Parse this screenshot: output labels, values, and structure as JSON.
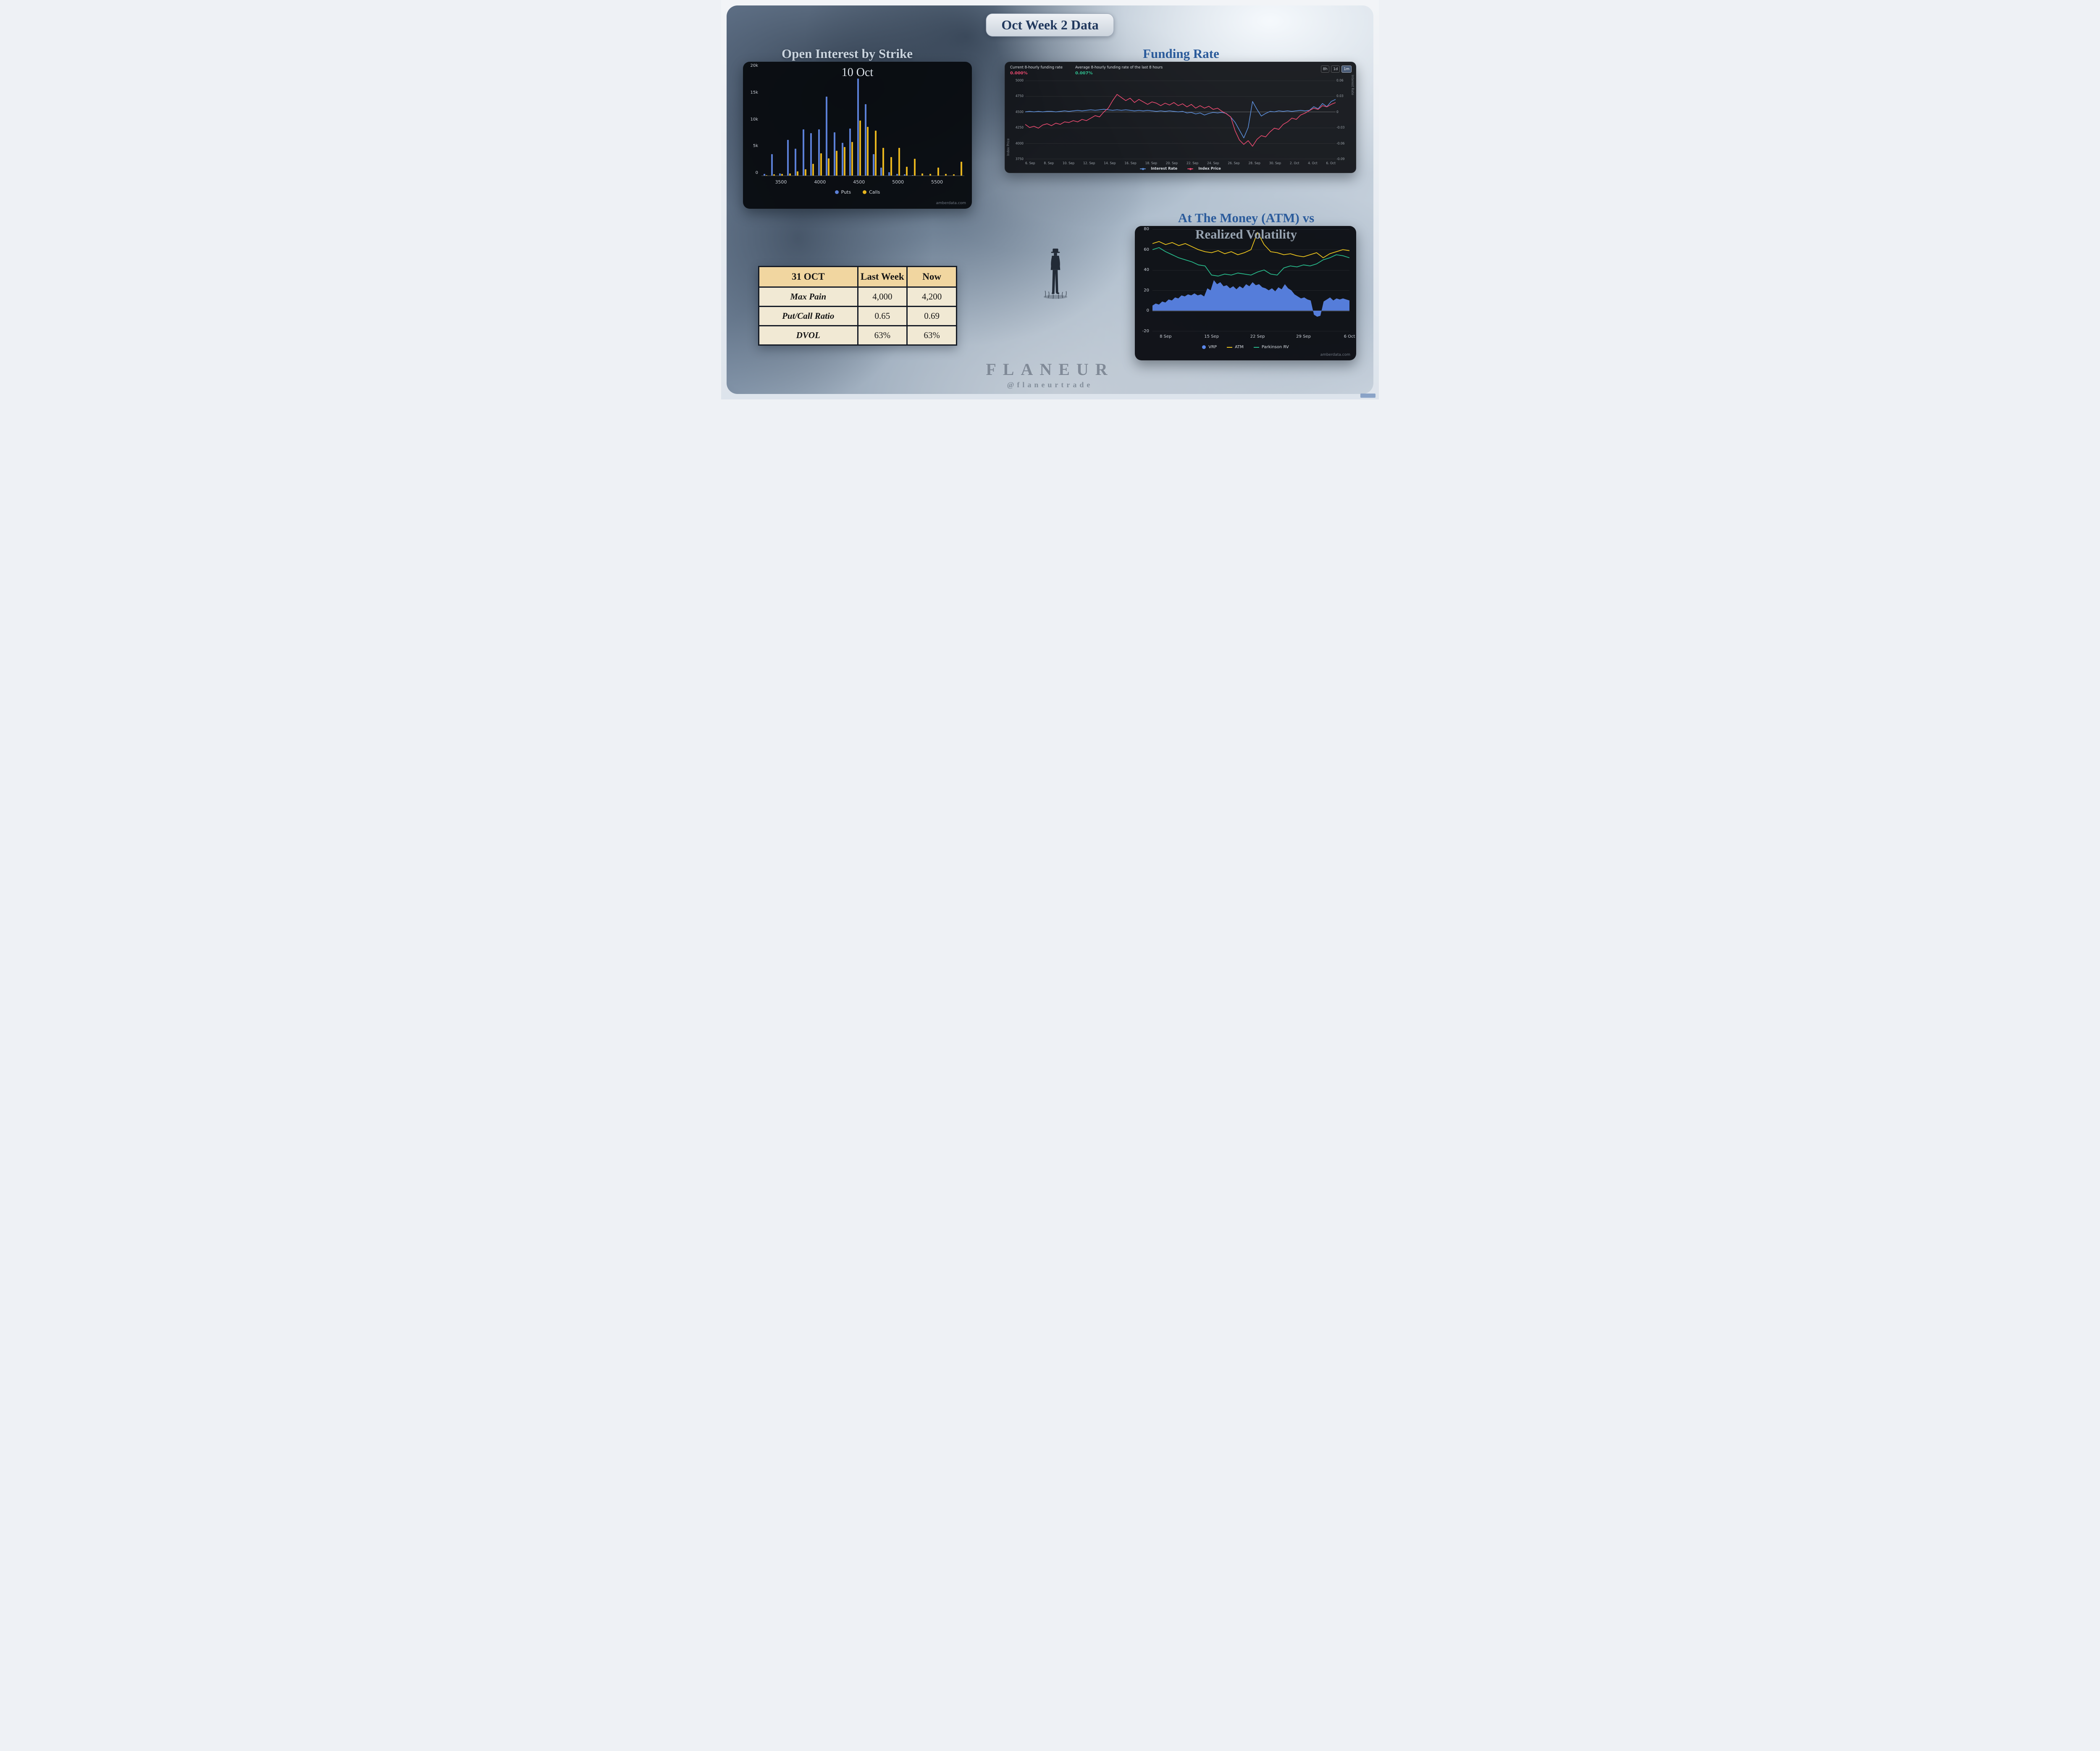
{
  "title": "Oct Week 2 Data",
  "sections": {
    "open_interest": {
      "heading": "Open Interest by Strike",
      "subtitle": "10 Oct",
      "legend": [
        "Puts",
        "Calls"
      ],
      "watermark": "amberdata.com"
    },
    "funding": {
      "heading": "Funding Rate",
      "stat1_label": "Current 8-hourly funding rate",
      "stat1_value": "0.000%",
      "stat2_label": "Average 8-hourly funding rate of the last 8 hours",
      "stat2_value": "0.007%",
      "range_buttons": [
        "8h",
        "1d",
        "1m"
      ],
      "active_range": "1m",
      "left_axis_title": "Index Price",
      "right_axis_title": "Interest Rate",
      "legend": [
        "Interest Rate",
        "Index Price"
      ]
    },
    "atm": {
      "heading_line1": "At The Money (ATM) vs",
      "heading_line2": "Realized Volatility",
      "legend": [
        "VRP",
        "ATM",
        "Parkinson RV"
      ],
      "watermark": "amberdata.com"
    }
  },
  "table": {
    "header": [
      "31 OCT",
      "Last Week",
      "Now"
    ],
    "rows": [
      [
        "Max Pain",
        "4,000",
        "4,200"
      ],
      [
        "Put/Call Ratio",
        "0.65",
        "0.69"
      ],
      [
        "DVOL",
        "63%",
        "63%"
      ]
    ]
  },
  "footer": {
    "brand": "FLANEUR",
    "handle": "@flaneurtrade"
  },
  "colors": {
    "puts_blue": "#5b7fd6",
    "calls_yellow": "#e6b41e",
    "interest_rate_blue": "#5b8dd8",
    "index_price_red": "#e84a6f",
    "vrp_blue": "#5b87ea",
    "atm_yellow": "#e8c11c",
    "parkinson_green": "#27b98a",
    "heading_blue": "#2c5c9c",
    "table_header_tan": "#f1d6a0",
    "table_cell_cream": "#f1e9d4"
  },
  "chart_data": [
    {
      "type": "bar",
      "title": "Open Interest by Strike — 10 Oct",
      "ylabel": "Open Interest",
      "ylim": [
        0,
        20000
      ],
      "yticks": [
        "20k",
        "15k",
        "10k",
        "5k",
        "0"
      ],
      "categories": [
        3300,
        3400,
        3500,
        3600,
        3700,
        3800,
        3900,
        4000,
        4100,
        4200,
        4300,
        4400,
        4500,
        4600,
        4700,
        4800,
        4900,
        5000,
        5100,
        5200,
        5300,
        5400,
        5500,
        5600,
        5700,
        5800
      ],
      "xticks": [
        3500,
        4000,
        4500,
        5000,
        5500
      ],
      "series": [
        {
          "name": "Puts",
          "color": "#5b7fd6",
          "values": [
            300,
            4000,
            400,
            6600,
            5000,
            8600,
            7900,
            8600,
            14600,
            8000,
            6100,
            8700,
            18000,
            13200,
            4000,
            1500,
            600,
            300,
            200,
            100,
            0,
            0,
            0,
            0,
            0,
            0
          ]
        },
        {
          "name": "Calls",
          "color": "#e6b41e",
          "values": [
            100,
            200,
            300,
            400,
            800,
            1200,
            2200,
            4100,
            3200,
            4600,
            5300,
            6200,
            10200,
            9000,
            8300,
            5100,
            3400,
            5100,
            1600,
            3100,
            400,
            300,
            1500,
            300,
            200,
            2600
          ]
        }
      ],
      "legend_position": "bottom"
    },
    {
      "type": "line",
      "title": "Funding Rate",
      "x_labels": [
        "6. Sep",
        "8. Sep",
        "10. Sep",
        "12. Sep",
        "14. Sep",
        "16. Sep",
        "18. Sep",
        "20. Sep",
        "22. Sep",
        "24. Sep",
        "26. Sep",
        "28. Sep",
        "30. Sep",
        "2. Oct",
        "4. Oct",
        "6. Oct"
      ],
      "left_axis": {
        "title": "Index Price",
        "range": [
          3750,
          5000
        ],
        "ticks": [
          5000,
          4750,
          4500,
          4250,
          4000,
          3750
        ]
      },
      "right_axis": {
        "title": "Interest Rate",
        "range": [
          -0.09,
          0.06
        ],
        "ticks": [
          0.06,
          0.03,
          0,
          -0.03,
          -0.06,
          -0.09
        ]
      },
      "grid": true,
      "legend_position": "bottom",
      "series": [
        {
          "name": "Interest Rate",
          "axis": "right",
          "color": "#5b8dd8",
          "values": [
            0.0,
            0.001,
            0.0,
            0.001,
            0.0,
            0.001,
            0.001,
            0.0,
            0.001,
            0.002,
            0.001,
            0.002,
            0.003,
            0.002,
            0.003,
            0.004,
            0.003,
            0.004,
            0.005,
            0.004,
            0.003,
            0.004,
            0.003,
            0.004,
            0.003,
            0.002,
            0.003,
            0.002,
            0.003,
            0.002,
            0.001,
            0.002,
            0.001,
            0.002,
            0.001,
            0.0,
            0.001,
            -0.002,
            -0.001,
            -0.004,
            -0.002,
            -0.006,
            -0.003,
            -0.001,
            -0.002,
            -0.001,
            -0.003,
            -0.01,
            -0.02,
            -0.035,
            -0.05,
            -0.03,
            0.02,
            0.005,
            -0.008,
            -0.003,
            0.001,
            0.0,
            0.002,
            0.001,
            0.002,
            0.001,
            0.002,
            0.003,
            0.002,
            0.003,
            0.01,
            0.006,
            0.016,
            0.01,
            0.02,
            0.024
          ]
        },
        {
          "name": "Index Price",
          "axis": "left",
          "color": "#e84a6f",
          "values": [
            4300,
            4250,
            4270,
            4240,
            4290,
            4310,
            4280,
            4320,
            4300,
            4340,
            4330,
            4360,
            4340,
            4380,
            4360,
            4400,
            4440,
            4420,
            4500,
            4560,
            4680,
            4780,
            4730,
            4680,
            4720,
            4650,
            4700,
            4660,
            4620,
            4660,
            4640,
            4600,
            4640,
            4610,
            4650,
            4600,
            4630,
            4580,
            4620,
            4560,
            4600,
            4560,
            4590,
            4540,
            4560,
            4510,
            4470,
            4420,
            4200,
            4050,
            3980,
            4040,
            3950,
            4060,
            4120,
            4100,
            4180,
            4240,
            4220,
            4300,
            4340,
            4400,
            4380,
            4450,
            4480,
            4520,
            4560,
            4540,
            4600,
            4580,
            4620,
            4650
          ]
        }
      ]
    },
    {
      "type": "area",
      "title": "At The Money (ATM) vs Realized Volatility",
      "ylim": [
        -20,
        80
      ],
      "yticks": [
        80,
        60,
        40,
        20,
        0,
        -20
      ],
      "x_labels": [
        "8 Sep",
        "15 Sep",
        "22 Sep",
        "29 Sep",
        "6 Oct"
      ],
      "legend_position": "bottom",
      "series": [
        {
          "name": "VRP",
          "render": "area",
          "color": "#5b87ea",
          "values": [
            5,
            7,
            6,
            9,
            8,
            11,
            10,
            13,
            12,
            15,
            14,
            16,
            15,
            17,
            15,
            16,
            14,
            22,
            20,
            30,
            26,
            28,
            24,
            25,
            22,
            24,
            21,
            24,
            22,
            26,
            24,
            28,
            25,
            26,
            23,
            22,
            20,
            22,
            19,
            23,
            21,
            26,
            22,
            20,
            16,
            14,
            12,
            13,
            11,
            10,
            -4,
            -6,
            -5,
            9,
            11,
            13,
            10,
            12,
            11,
            12,
            11,
            10
          ]
        },
        {
          "name": "ATM",
          "render": "line",
          "color": "#e8c11c",
          "values": [
            66,
            68,
            65,
            67,
            64,
            66,
            63,
            60,
            58,
            57,
            59,
            56,
            58,
            55,
            57,
            60,
            77,
            65,
            58,
            57,
            55,
            56,
            54,
            53,
            55,
            57,
            52,
            56,
            58,
            60,
            59
          ]
        },
        {
          "name": "Parkinson RV",
          "render": "line",
          "color": "#27b98a",
          "values": [
            60,
            62,
            58,
            55,
            52,
            50,
            48,
            45,
            44,
            35,
            34,
            36,
            35,
            37,
            36,
            35,
            38,
            40,
            36,
            35,
            42,
            44,
            43,
            45,
            44,
            46,
            50,
            52,
            55,
            54,
            52
          ]
        }
      ]
    }
  ]
}
